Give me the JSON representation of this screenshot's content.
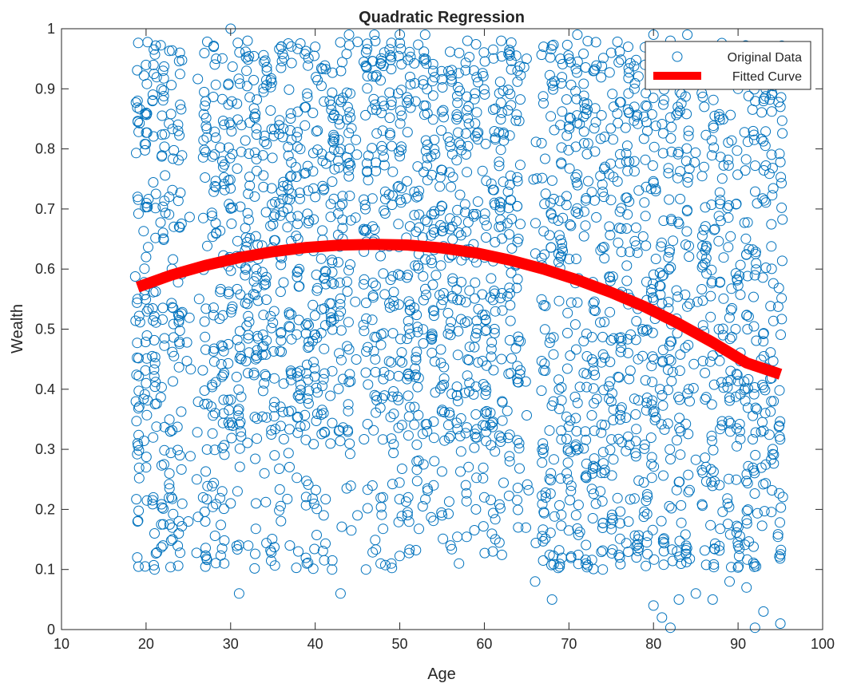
{
  "chart_data": {
    "type": "scatter",
    "title": "Quadratic Regression",
    "xlabel": "Age",
    "ylabel": "Wealth",
    "xlim": [
      10,
      100
    ],
    "ylim": [
      0,
      1
    ],
    "xticks": [
      10,
      20,
      30,
      40,
      50,
      60,
      70,
      80,
      90,
      100
    ],
    "yticks": [
      0,
      0.1,
      0.2,
      0.3,
      0.4,
      0.5,
      0.6,
      0.7,
      0.8,
      0.9,
      1
    ],
    "xtick_labels": [
      "10",
      "20",
      "30",
      "40",
      "50",
      "60",
      "70",
      "80",
      "90",
      "100"
    ],
    "ytick_labels": [
      "0",
      "0.1",
      "0.2",
      "0.3",
      "0.4",
      "0.5",
      "0.6",
      "0.7",
      "0.8",
      "0.9",
      "1"
    ],
    "grid": false,
    "legend_position": "top-right",
    "series": [
      {
        "name": "Original Data",
        "type": "scatter",
        "marker": "open-circle",
        "color": "#0072BD",
        "x_range": [
          19,
          95
        ],
        "note_distribution": "dense uniform scatter of ~3500 points across ages 19-95, wealth 0-1",
        "points": [
          [
            19,
            0.88
          ],
          [
            19,
            0.72
          ],
          [
            19,
            0.55
          ],
          [
            19,
            0.31
          ],
          [
            19,
            0.18
          ],
          [
            20,
            0.86
          ],
          [
            20,
            0.62
          ],
          [
            20,
            0.41
          ],
          [
            20,
            0.27
          ],
          [
            21,
            0.1
          ],
          [
            21,
            0.16
          ],
          [
            22,
            0.93
          ],
          [
            22,
            0.14
          ],
          [
            23,
            0.22
          ],
          [
            24,
            0.96
          ],
          [
            24,
            0.29
          ],
          [
            25,
            0.18
          ],
          [
            26,
            0.25
          ],
          [
            27,
            0.18
          ],
          [
            28,
            0.97
          ],
          [
            29,
            0.23
          ],
          [
            30,
            1.0
          ],
          [
            30,
            0.21
          ],
          [
            31,
            0.06
          ],
          [
            32,
            0.98
          ],
          [
            33,
            0.21
          ],
          [
            34,
            0.26
          ],
          [
            36,
            0.97
          ],
          [
            37,
            0.14
          ],
          [
            38,
            0.13
          ],
          [
            39,
            0.11
          ],
          [
            40,
            0.97
          ],
          [
            41,
            0.19
          ],
          [
            42,
            0.1
          ],
          [
            43,
            0.06
          ],
          [
            44,
            0.99
          ],
          [
            45,
            0.19
          ],
          [
            46,
            0.1
          ],
          [
            47,
            0.99
          ],
          [
            48,
            0.22
          ],
          [
            49,
            0.11
          ],
          [
            50,
            0.99
          ],
          [
            51,
            0.22
          ],
          [
            52,
            0.28
          ],
          [
            53,
            0.99
          ],
          [
            54,
            0.24
          ],
          [
            55,
            0.19
          ],
          [
            56,
            0.14
          ],
          [
            57,
            0.11
          ],
          [
            58,
            0.98
          ],
          [
            59,
            0.2
          ],
          [
            60,
            0.22
          ],
          [
            61,
            0.13
          ],
          [
            62,
            0.98
          ],
          [
            63,
            0.28
          ],
          [
            64,
            0.17
          ],
          [
            65,
            0.95
          ],
          [
            66,
            0.08
          ],
          [
            67,
            0.97
          ],
          [
            68,
            0.05
          ],
          [
            69,
            0.95
          ],
          [
            70,
            0.95
          ],
          [
            71,
            0.99
          ],
          [
            72,
            0.11
          ],
          [
            73,
            0.93
          ],
          [
            74,
            0.1
          ],
          [
            75,
            0.96
          ],
          [
            76,
            0.12
          ],
          [
            77,
            0.97
          ],
          [
            78,
            0.14
          ],
          [
            79,
            0.94
          ],
          [
            80,
            0.99
          ],
          [
            80,
            0.04
          ],
          [
            81,
            0.02
          ],
          [
            82,
            0.98
          ],
          [
            82,
            0.003
          ],
          [
            83,
            0.05
          ],
          [
            84,
            0.99
          ],
          [
            85,
            0.06
          ],
          [
            86,
            0.87
          ],
          [
            87,
            0.05
          ],
          [
            88,
            0.97
          ],
          [
            89,
            0.08
          ],
          [
            90,
            0.9
          ],
          [
            91,
            0.07
          ],
          [
            92,
            0.003
          ],
          [
            93,
            0.03
          ],
          [
            94,
            0.89
          ],
          [
            95,
            0.01
          ],
          [
            95,
            0.87
          ]
        ]
      },
      {
        "name": "Fitted Curve",
        "type": "line",
        "color": "#FF0000",
        "x": [
          19,
          23,
          27,
          31,
          35,
          39,
          43,
          47,
          51,
          55,
          59,
          63,
          67,
          71,
          75,
          79,
          83,
          87,
          91,
          95
        ],
        "values": [
          0.57,
          0.59,
          0.606,
          0.619,
          0.629,
          0.636,
          0.64,
          0.641,
          0.64,
          0.635,
          0.627,
          0.615,
          0.6,
          0.582,
          0.561,
          0.537,
          0.509,
          0.478,
          0.444,
          0.425
        ]
      }
    ]
  }
}
